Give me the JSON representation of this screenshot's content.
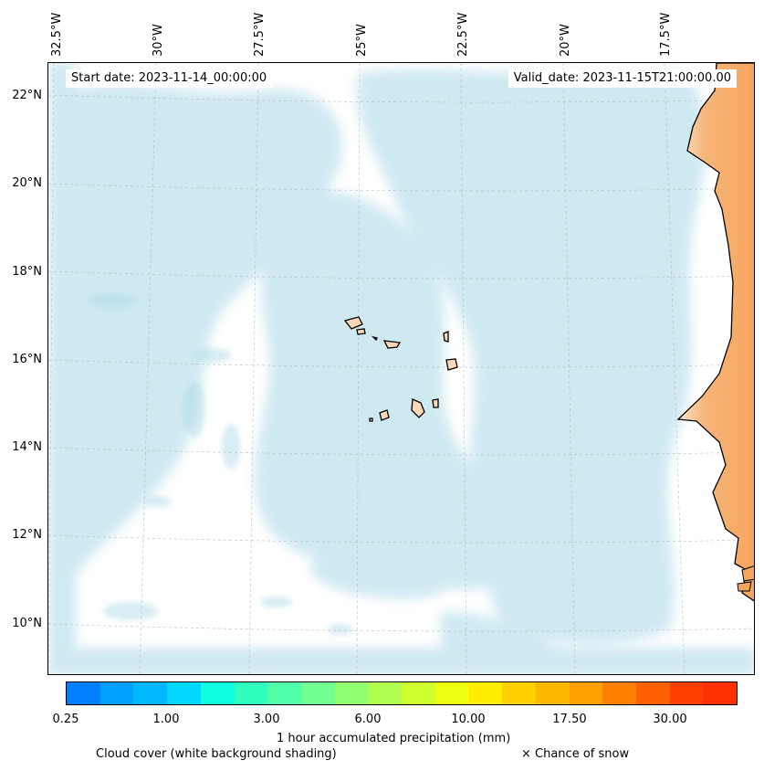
{
  "map": {
    "longitude_labels": [
      "32.5°W",
      "30°W",
      "27.5°W",
      "25°W",
      "22.5°W",
      "20°W",
      "17.5°W"
    ],
    "latitude_labels": [
      "22°N",
      "20°N",
      "18°N",
      "16°N",
      "14°N",
      "12°N",
      "10°N"
    ],
    "start_date": "Start date: 2023-11-14_00:00:00",
    "valid_date": "Valid_date: 2023-11-15T21:00:00.00",
    "land_color": "#f5a55c",
    "island_color": "#fbd7b8",
    "cloud_color": "#a9d8e6",
    "features": [
      "Cape Verde islands",
      "West African coastline"
    ]
  },
  "colorbar": {
    "label": "1 hour accumulated precipitation (mm)",
    "tick_labels": [
      "0.25",
      "1.00",
      "3.00",
      "6.00",
      "10.00",
      "17.50",
      "30.00"
    ],
    "colors": [
      "#0080ff",
      "#00a0ff",
      "#00b8ff",
      "#00d8ff",
      "#10ffe0",
      "#30ffc0",
      "#50ffa8",
      "#70ff90",
      "#90ff70",
      "#b0ff50",
      "#d0ff30",
      "#f0ff10",
      "#ffee00",
      "#ffd000",
      "#ffb800",
      "#ffa000",
      "#ff8000",
      "#ff6000",
      "#ff4000",
      "#ff3000"
    ]
  },
  "legend": {
    "cloud_cover": "Cloud cover (white background shading)",
    "snow": "× Chance of snow"
  }
}
